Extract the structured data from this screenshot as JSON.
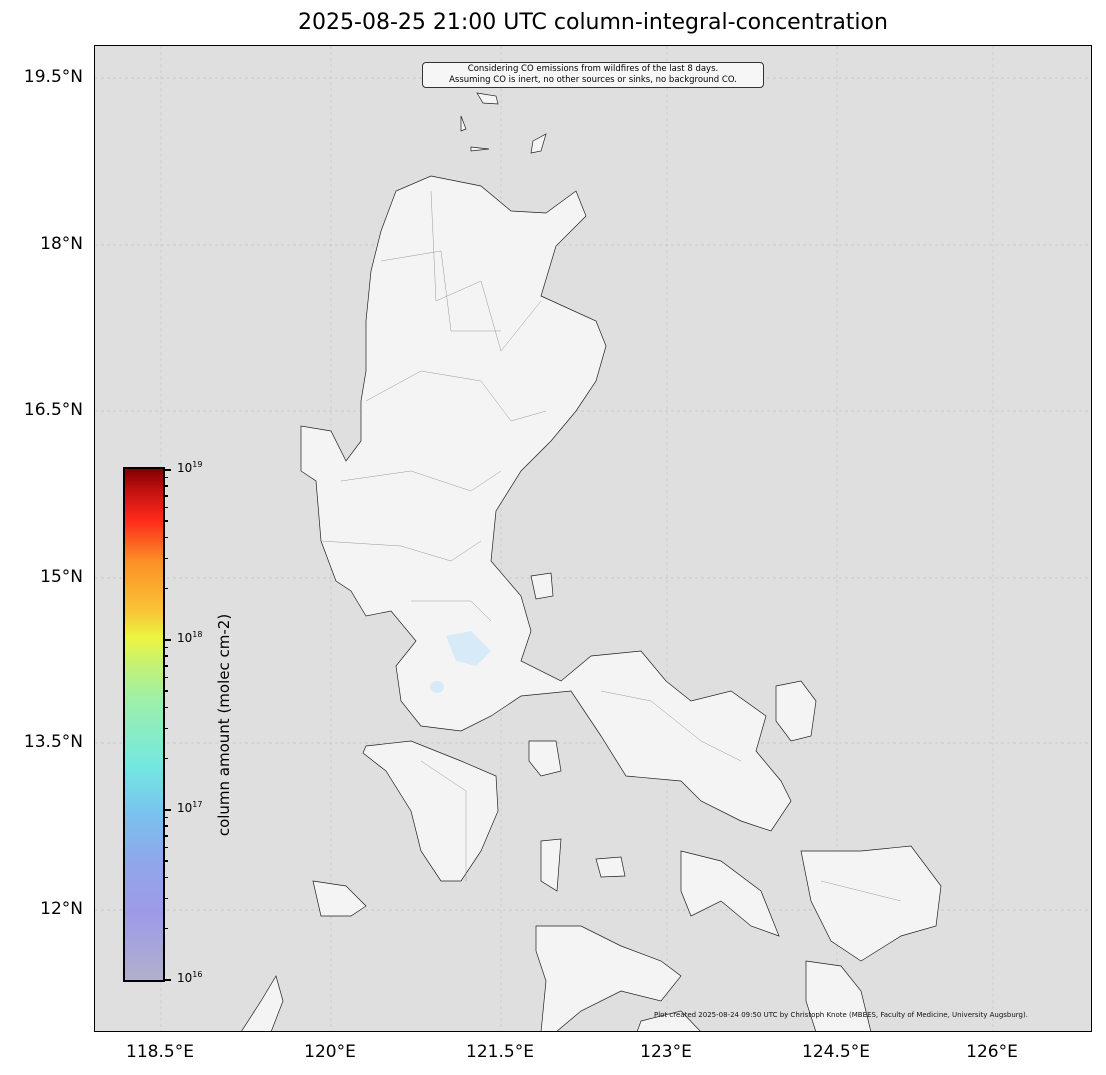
{
  "title": "2025-08-25 21:00 UTC column-integral-concentration",
  "map": {
    "extent": {
      "lon": [
        117.9,
        126.9
      ],
      "lat": [
        10.9,
        19.8
      ]
    },
    "ocean_color": "#dfdfdf",
    "land_color": "#f4f4f4",
    "lake_color": "#d6eaf8",
    "lat_ticks": [
      "19.5°N",
      "18°N",
      "16.5°N",
      "15°N",
      "13.5°N",
      "12°N"
    ],
    "lon_ticks": [
      "118.5°E",
      "120°E",
      "121.5°E",
      "123°E",
      "124.5°E",
      "126°E"
    ],
    "gridlines": true
  },
  "annotation": {
    "line1": "Considering CO emissions from wildfires of the last 8 days.",
    "line2": "Assuming CO is inert, no other sources or sinks, no background CO."
  },
  "credit": "Plot created 2025-08-24 09:50 UTC by Christoph Knote (MBEES, Faculty of Medicine, University Augsburg).",
  "colorbar": {
    "label": "column amount (molec cm-2)",
    "scale": "log",
    "range": [
      1e+16,
      1e+19
    ],
    "ticks": [
      {
        "base": "10",
        "exp": "19"
      },
      {
        "base": "10",
        "exp": "18"
      },
      {
        "base": "10",
        "exp": "17"
      },
      {
        "base": "10",
        "exp": "16"
      }
    ],
    "colormap": [
      "#b0b0cc",
      "#9e9ae8",
      "#78c4ee",
      "#74e8e0",
      "#c6f270",
      "#ecf540",
      "#fb8f26",
      "#ff2a1a",
      "#800000"
    ]
  }
}
